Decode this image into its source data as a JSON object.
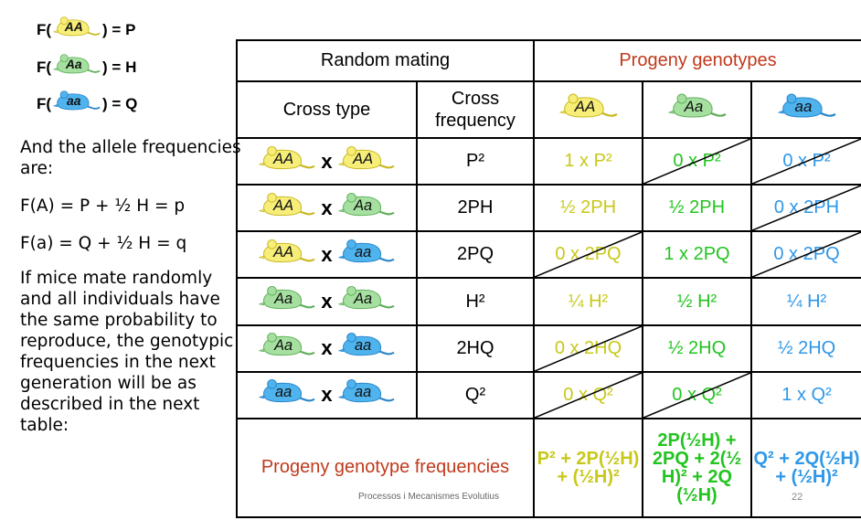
{
  "equations": [
    {
      "prefix": "F(",
      "genotype": "AA",
      "suffix": ") = P",
      "color": "yellow"
    },
    {
      "prefix": "F(",
      "genotype": "Aa",
      "suffix": ") = H",
      "color": "green"
    },
    {
      "prefix": "F(",
      "genotype": "aa",
      "suffix": ") = Q",
      "color": "blue"
    }
  ],
  "text": {
    "allele_intro": "And the allele frequencies are:",
    "fa_upper": "F(A) = P + ½ H = p",
    "fa_lower": "F(a) = Q + ½ H = q",
    "conclusion": "If mice mate randomly and all individuals have the same probability to reproduce, the genotypic frequencies in the next generation will be as described in the next table:"
  },
  "colors": {
    "yellow_fill": "#f7ee7a",
    "yellow_stroke": "#c8b820",
    "green_fill": "#a6e0a0",
    "green_stroke": "#5fae5a",
    "blue_fill": "#4fb3ee",
    "blue_stroke": "#2a86c9",
    "header_red": "#c0391b"
  },
  "table": {
    "random_mating": "Random mating",
    "progeny_genotypes": "Progeny genotypes",
    "cross_type": "Cross type",
    "cross_frequency": "Cross frequency",
    "progeny_headers": [
      {
        "genotype": "AA",
        "color": "yellow"
      },
      {
        "genotype": "Aa",
        "color": "green"
      },
      {
        "genotype": "aa",
        "color": "blue"
      }
    ],
    "rows": [
      {
        "p1": "AA",
        "c1": "yellow",
        "p2": "AA",
        "c2": "yellow",
        "freq": "P²",
        "yAA": "1 x P²",
        "yAA_slash": false,
        "hAa": "0 x P²",
        "hAa_slash": true,
        "qaa": "0 x P²",
        "qaa_slash": true
      },
      {
        "p1": "AA",
        "c1": "yellow",
        "p2": "Aa",
        "c2": "green",
        "freq": "2PH",
        "yAA": "½ 2PH",
        "yAA_slash": false,
        "hAa": "½ 2PH",
        "hAa_slash": false,
        "qaa": "0 x 2PH",
        "qaa_slash": true
      },
      {
        "p1": "AA",
        "c1": "yellow",
        "p2": "aa",
        "c2": "blue",
        "freq": "2PQ",
        "yAA": "0 x 2PQ",
        "yAA_slash": true,
        "hAa": "1 x 2PQ",
        "hAa_slash": false,
        "qaa": "0 x 2PQ",
        "qaa_slash": true
      },
      {
        "p1": "Aa",
        "c1": "green",
        "p2": "Aa",
        "c2": "green",
        "freq": "H²",
        "yAA": "¼ H²",
        "yAA_slash": false,
        "hAa": "½ H²",
        "hAa_slash": false,
        "qaa": "¼ H²",
        "qaa_slash": false
      },
      {
        "p1": "Aa",
        "c1": "green",
        "p2": "aa",
        "c2": "blue",
        "freq": "2HQ",
        "yAA": "0 x 2HQ",
        "yAA_slash": true,
        "hAa": "½ 2HQ",
        "hAa_slash": false,
        "qaa": "½ 2HQ",
        "qaa_slash": false
      },
      {
        "p1": "aa",
        "c1": "blue",
        "p2": "aa",
        "c2": "blue",
        "freq": "Q²",
        "yAA": "0 x Q²",
        "yAA_slash": true,
        "hAa": "0 x Q²",
        "hAa_slash": true,
        "qaa": "1 x Q²",
        "qaa_slash": false
      }
    ],
    "footer_label": "Progeny genotype frequencies",
    "footer_yAA": "P² + 2P(½H) + (½H)²",
    "footer_hAa": "2P(½H) + 2PQ + 2(½ H)² + 2Q (½H)",
    "footer_qaa": "Q² + 2Q(½H) + (½H)²"
  },
  "footer_note": "Processos i Mecanismes Evolutius",
  "page_number": "22"
}
